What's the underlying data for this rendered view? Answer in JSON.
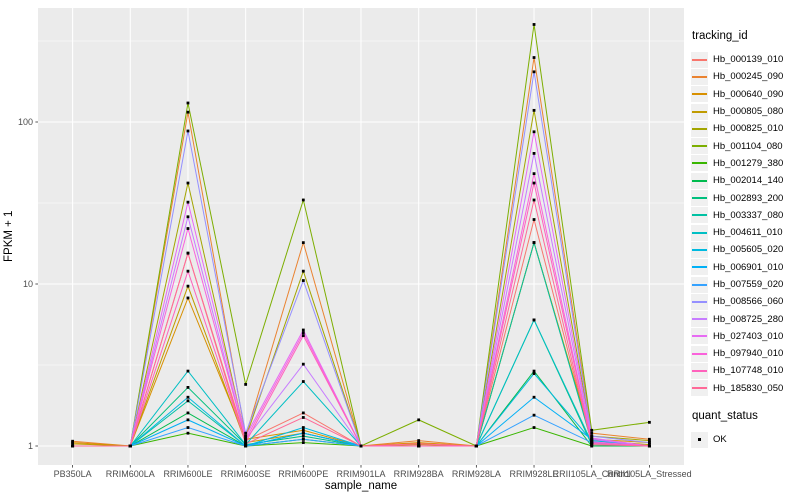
{
  "panel": {
    "bg": "#EBEBEB",
    "grid_color": "#FFFFFF",
    "tick_color": "#333333",
    "point_color": "#000000"
  },
  "chart_data": {
    "type": "line",
    "title": "",
    "xlabel": "sample_name",
    "ylabel": "FPKM + 1",
    "y_scale": "log10",
    "y_ticks": [
      1,
      10,
      100
    ],
    "ylim": [
      0.76,
      505
    ],
    "grid": true,
    "legend_position": "right",
    "legend_title": "tracking_id",
    "categories": [
      "PB350LA",
      "RRIM600LA",
      "RRIM600LE",
      "RRIM600SE",
      "RRIM600PE",
      "RRIM901LA",
      "RRIM928BA",
      "RRIM928LA",
      "RRIM928LE",
      "RRII105LA_Control",
      "RRII105LA_Stressed"
    ],
    "series": [
      {
        "name": "Hb_000139_010",
        "color": "#F8766D",
        "values": [
          1,
          1,
          15.5,
          1.08,
          1.6,
          1,
          1.04,
          1,
          25,
          1.04,
          1
        ]
      },
      {
        "name": "Hb_000245_090",
        "color": "#EA8331",
        "values": [
          1.07,
          1,
          115,
          1.15,
          18,
          1,
          1.08,
          1,
          250,
          1.2,
          1.1
        ]
      },
      {
        "name": "Hb_000640_090",
        "color": "#D89000",
        "values": [
          1.05,
          1,
          8.2,
          1.1,
          1.25,
          1,
          1.05,
          1,
          18,
          1.1,
          1.05
        ]
      },
      {
        "name": "Hb_000805_080",
        "color": "#C09B00",
        "values": [
          1.03,
          1,
          9.7,
          1.05,
          1.2,
          1,
          1.02,
          1,
          18,
          1.08,
          1.02
        ]
      },
      {
        "name": "Hb_000825_010",
        "color": "#A3A500",
        "values": [
          1,
          1,
          42,
          1.12,
          12,
          1,
          1,
          1,
          118,
          1.15,
          1.08
        ]
      },
      {
        "name": "Hb_001104_080",
        "color": "#7CAE00",
        "values": [
          1,
          1,
          131,
          2.4,
          33,
          1,
          1.45,
          1,
          400,
          1.25,
          1.4
        ]
      },
      {
        "name": "Hb_001279_380",
        "color": "#39B600",
        "values": [
          1,
          1,
          1.2,
          1,
          1.05,
          1,
          1,
          1,
          1.3,
          1,
          1
        ]
      },
      {
        "name": "Hb_002014_140",
        "color": "#00BB4E",
        "values": [
          1,
          1,
          1.6,
          1,
          1.1,
          1,
          1,
          1,
          2.9,
          1,
          1
        ]
      },
      {
        "name": "Hb_002893_200",
        "color": "#00BF7D",
        "values": [
          1,
          1,
          2.3,
          1.02,
          1.15,
          1,
          1,
          1,
          6.0,
          1.02,
          1
        ]
      },
      {
        "name": "Hb_003337_080",
        "color": "#00C1A3",
        "values": [
          1,
          1,
          1.9,
          1,
          1.2,
          1,
          1,
          1,
          18,
          1.05,
          1
        ]
      },
      {
        "name": "Hb_004611_010",
        "color": "#00BFC4",
        "values": [
          1,
          1,
          2.9,
          1.02,
          2.5,
          1,
          1,
          1,
          6.0,
          1.05,
          1
        ]
      },
      {
        "name": "Hb_005605_020",
        "color": "#00BAE0",
        "values": [
          1,
          1,
          2.0,
          1,
          1.3,
          1,
          1,
          1,
          2.8,
          1.08,
          1
        ]
      },
      {
        "name": "Hb_006901_010",
        "color": "#00B0F6",
        "values": [
          1,
          1,
          1.45,
          1,
          1.2,
          1,
          1,
          1,
          2.0,
          1.1,
          1
        ]
      },
      {
        "name": "Hb_007559_020",
        "color": "#35A2FF",
        "values": [
          1,
          1,
          1.3,
          1,
          1.1,
          1,
          1,
          1,
          1.55,
          1.05,
          1
        ]
      },
      {
        "name": "Hb_008566_060",
        "color": "#9590FF",
        "values": [
          1,
          1,
          88,
          1.2,
          10.5,
          1,
          1,
          1,
          204,
          1.15,
          1.05
        ]
      },
      {
        "name": "Hb_008725_280",
        "color": "#C77CFF",
        "values": [
          1,
          1,
          26,
          1.1,
          3.2,
          1,
          1,
          1,
          64,
          1.1,
          1
        ]
      },
      {
        "name": "Hb_027403_010",
        "color": "#E76BF3",
        "values": [
          1,
          1,
          32,
          1.15,
          5.2,
          1,
          1,
          1,
          87,
          1.12,
          1
        ]
      },
      {
        "name": "Hb_097940_010",
        "color": "#FA62DB",
        "values": [
          1,
          1,
          22,
          1.1,
          5.0,
          1,
          1,
          1,
          48,
          1.06,
          1
        ]
      },
      {
        "name": "Hb_107748_010",
        "color": "#FF62BC",
        "values": [
          1,
          1,
          12,
          1.05,
          4.8,
          1,
          1,
          1,
          42,
          1.04,
          1
        ]
      },
      {
        "name": "Hb_185830_050",
        "color": "#FF6A98",
        "values": [
          1,
          1,
          15.5,
          1.03,
          1.5,
          1,
          1.03,
          1,
          33,
          1.02,
          1
        ]
      }
    ],
    "quant_legend": {
      "title": "quant_status",
      "items": [
        {
          "label": "OK",
          "marker": "black-square"
        }
      ]
    }
  }
}
